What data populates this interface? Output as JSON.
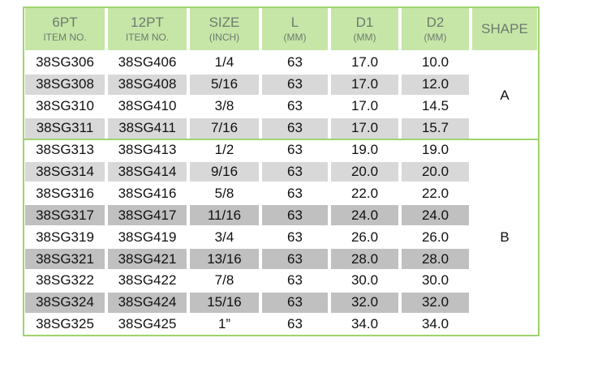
{
  "table": {
    "header": [
      {
        "main": "6PT",
        "sub": "ITEM NO."
      },
      {
        "main": "12PT",
        "sub": "ITEM NO."
      },
      {
        "main": "SIZE",
        "sub": "(INCH)"
      },
      {
        "main": "L",
        "sub": "(MM)"
      },
      {
        "main": "D1",
        "sub": "(MM)"
      },
      {
        "main": "D2",
        "sub": "(MM)"
      },
      {
        "main": "SHAPE"
      }
    ],
    "groups": [
      {
        "shape": "A",
        "rows": [
          [
            "38SG306",
            "38SG406",
            "1/4",
            "63",
            "17.0",
            "10.0"
          ],
          [
            "38SG308",
            "38SG408",
            "5/16",
            "63",
            "17.0",
            "12.0"
          ],
          [
            "38SG310",
            "38SG410",
            "3/8",
            "63",
            "17.0",
            "14.5"
          ],
          [
            "38SG311",
            "38SG411",
            "7/16",
            "63",
            "17.0",
            "15.7"
          ]
        ]
      },
      {
        "shape": "B",
        "rows": [
          [
            "38SG313",
            "38SG413",
            "1/2",
            "63",
            "19.0",
            "19.0"
          ],
          [
            "38SG314",
            "38SG414",
            "9/16",
            "63",
            "20.0",
            "20.0"
          ],
          [
            "38SG316",
            "38SG416",
            "5/8",
            "63",
            "22.0",
            "22.0"
          ],
          [
            "38SG317",
            "38SG417",
            "11/16",
            "63",
            "24.0",
            "24.0"
          ],
          [
            "38SG319",
            "38SG419",
            "3/4",
            "63",
            "26.0",
            "26.0"
          ],
          [
            "38SG321",
            "38SG421",
            "13/16",
            "63",
            "28.0",
            "28.0"
          ],
          [
            "38SG322",
            "38SG422",
            "7/8",
            "63",
            "30.0",
            "30.0"
          ],
          [
            "38SG324",
            "38SG424",
            "15/16",
            "63",
            "32.0",
            "32.0"
          ],
          [
            "38SG325",
            "38SG425",
            "1”",
            "63",
            "34.0",
            "34.0"
          ]
        ]
      }
    ]
  }
}
